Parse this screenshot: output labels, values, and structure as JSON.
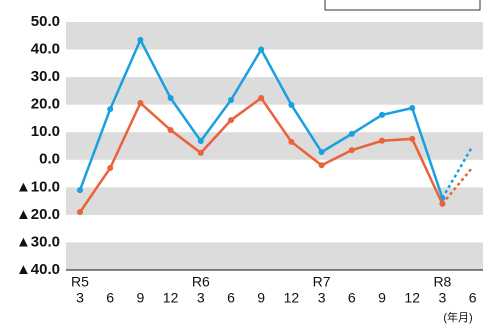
{
  "chart_data": {
    "type": "line",
    "categories": [
      "3",
      "6",
      "9",
      "12",
      "3",
      "6",
      "9",
      "12",
      "3",
      "6",
      "9",
      "12",
      "3",
      "6"
    ],
    "years": [
      "R5",
      null,
      null,
      null,
      "R6",
      null,
      null,
      null,
      "R7",
      null,
      null,
      null,
      "R8",
      null
    ],
    "x_unit": "(年月)",
    "series": [
      {
        "color": "#1a9fdf",
        "values": [
          -11,
          18.4,
          43.5,
          22.4,
          6.8,
          21.7,
          40,
          19.9,
          2.8,
          9.4,
          16.3,
          18.8,
          -13.9,
          5
        ]
      },
      {
        "color": "#e8633a",
        "values": [
          -19,
          -3,
          20.6,
          10.8,
          2.5,
          14.4,
          22.4,
          6.5,
          -2,
          3.5,
          6.9,
          7.6,
          -16,
          -2.7
        ]
      }
    ],
    "dashed_from": 12,
    "ylim": [
      -40,
      50
    ],
    "yticks": [
      {
        "value": 50,
        "label": "50.0"
      },
      {
        "value": 40,
        "label": "40.0"
      },
      {
        "value": 30,
        "label": "30.0"
      },
      {
        "value": 20,
        "label": "20.0"
      },
      {
        "value": 10,
        "label": "10.0"
      },
      {
        "value": 0,
        "label": "0.0"
      },
      {
        "value": -10,
        "label": "▲10.0"
      },
      {
        "value": -20,
        "label": "▲20.0"
      },
      {
        "value": -30,
        "label": "▲30.0"
      },
      {
        "value": -40,
        "label": "▲40.0"
      }
    ],
    "band_color": "#dcdcdc"
  }
}
